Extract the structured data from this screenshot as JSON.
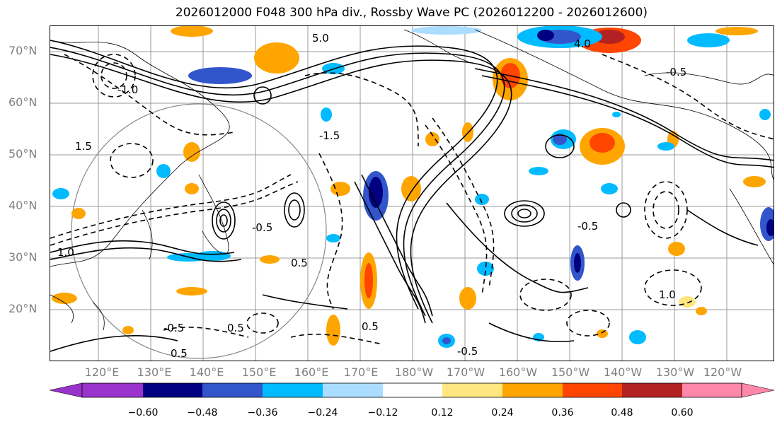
{
  "title": "2026012000 F048 300 hPa div., Rossby Wave PC (2026012200 - 2026012600)",
  "latitude_labels": [
    "70°N",
    "60°N",
    "50°N",
    "40°N",
    "30°N",
    "20°N"
  ],
  "longitude_labels": [
    "120°E",
    "130°E",
    "140°E",
    "150°E",
    "160°E",
    "170°E",
    "180°W",
    "170°W",
    "160°W",
    "150°W",
    "140°W",
    "130°W",
    "120°W"
  ],
  "contour_labels": [
    "-0.5",
    "0.5",
    "1.0",
    "-1.0",
    "1.5",
    "-1.5",
    "4.0",
    "5.0",
    "-0.5",
    "0.5",
    "-0.5",
    "0.5",
    "-0.5",
    "1.0",
    "0.5",
    "-0.5"
  ],
  "colorbar": {
    "ticks": [
      "−0.60",
      "−0.48",
      "−0.36",
      "−0.24",
      "−0.12",
      "0.12",
      "0.24",
      "0.36",
      "0.48",
      "0.60"
    ],
    "colors": [
      "#9933cc",
      "#000080",
      "#3355cc",
      "#00bbff",
      "#aaddff",
      "#ffffff",
      "#ffe680",
      "#ffa500",
      "#ff4500",
      "#b22222",
      "#ff88aa"
    ]
  },
  "colors": {
    "pos1": "#ffe680",
    "pos2": "#ffa500",
    "pos3": "#ff4500",
    "pos4": "#b22222",
    "neg1": "#aaddff",
    "neg2": "#00bbff",
    "neg3": "#3355cc",
    "neg4": "#000080",
    "grid": "#999999",
    "coast": "#000000"
  }
}
